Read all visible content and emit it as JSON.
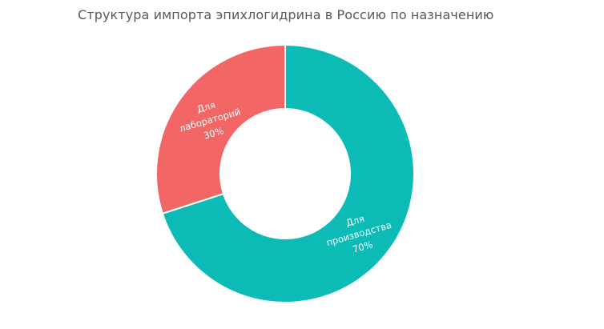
{
  "title": "Структура импорта эпихлогидрина в Россию по назначению",
  "chart_data": {
    "type": "pie",
    "variant": "donut",
    "title": "Структура импорта эпихлогидрина в Россию по назначению",
    "categories": [
      "Для производства",
      "Для лабораторий"
    ],
    "values": [
      70,
      30
    ],
    "unit": "%",
    "colors": [
      "#0cbbb5",
      "#f26666"
    ],
    "start_angle_deg": 0,
    "direction": "clockwise",
    "legend": "none",
    "data_labels": [
      {
        "line1": "Для",
        "line2": "производства",
        "pct": "70%"
      },
      {
        "line1": "Для",
        "line2": "лабораторий",
        "pct": "30%"
      }
    ]
  }
}
